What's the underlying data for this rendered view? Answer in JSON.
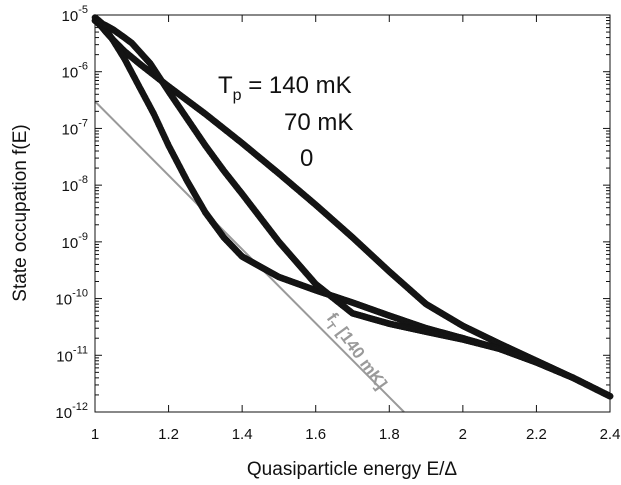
{
  "chart_data": {
    "type": "scatter",
    "xlabel": "Quasiparticle energy E/Δ",
    "ylabel": "State occupation  f(E)",
    "x_ticks": [
      "1",
      "1.2",
      "1.4",
      "1.6",
      "1.8",
      "2",
      "2.2",
      "2.4"
    ],
    "y_ticks": [
      {
        "base": "10",
        "exp": "-12"
      },
      {
        "base": "10",
        "exp": "-11"
      },
      {
        "base": "10",
        "exp": "-10"
      },
      {
        "base": "10",
        "exp": "-9"
      },
      {
        "base": "10",
        "exp": "-8"
      },
      {
        "base": "10",
        "exp": "-7"
      },
      {
        "base": "10",
        "exp": "-6"
      },
      {
        "base": "10",
        "exp": "-5"
      }
    ],
    "xlim": [
      1.0,
      2.4
    ],
    "ylim": [
      1e-12,
      1e-05
    ],
    "yscale": "log",
    "grid": false,
    "annotations": {
      "tp_prefix": "T",
      "tp_sub": "p",
      "tp_value": " = 140 mK",
      "line2": "70 mK",
      "line3": "0"
    },
    "reference_line": {
      "label_main": "f",
      "label_sub": "T",
      "label_rest": " [140 mK]",
      "color": "#9a9a9a",
      "x": [
        1.0,
        1.84
      ],
      "y": [
        3e-07,
        1e-12
      ]
    },
    "marker_color": "#141414",
    "series": [
      {
        "x": [
          1.0,
          1.01,
          1.02,
          1.03,
          1.05,
          1.08,
          1.12,
          1.2,
          1.3,
          1.4,
          1.5,
          1.6,
          1.7,
          1.8,
          1.9,
          2.0,
          2.1,
          2.2,
          2.3,
          2.4
        ],
        "y": [
          8e-06,
          7e-06,
          6e-06,
          5e-06,
          3.6e-06,
          2.3e-06,
          1.4e-06,
          5.5e-07,
          1.8e-07,
          5.5e-08,
          1.6e-08,
          4.5e-09,
          1.2e-09,
          3e-10,
          8e-11,
          3.3e-11,
          1.6e-11,
          8e-12,
          4e-12,
          1.9e-12
        ]
      },
      {
        "x": [
          1.0,
          1.01,
          1.02,
          1.03,
          1.05,
          1.08,
          1.12,
          1.16,
          1.2,
          1.25,
          1.3,
          1.35,
          1.4,
          1.5,
          1.6,
          1.7,
          1.8,
          1.9,
          2.0,
          2.1,
          2.2,
          2.3,
          2.4
        ],
        "y": [
          8e-06,
          7.5e-06,
          6.5e-06,
          5.5e-06,
          3.5e-06,
          1.7e-06,
          5.5e-07,
          1.8e-07,
          5e-08,
          1.2e-08,
          3.3e-09,
          1.2e-09,
          5.5e-10,
          2.4e-10,
          1.4e-10,
          8.5e-11,
          5e-11,
          3e-11,
          2e-11,
          1.3e-11,
          7.5e-12,
          4e-12,
          1.9e-12
        ]
      },
      {
        "x": [
          1.0,
          1.01,
          1.02,
          1.03,
          1.05,
          1.08,
          1.1,
          1.15,
          1.2,
          1.25,
          1.3,
          1.35,
          1.4,
          1.5,
          1.6,
          1.7,
          1.8,
          1.9,
          2.0,
          2.1,
          2.2,
          2.3,
          2.4
        ],
        "y": [
          9e-06,
          8e-06,
          7e-06,
          6.5e-06,
          5.5e-06,
          4e-06,
          3.2e-06,
          1.4e-06,
          4.5e-07,
          1.5e-07,
          5e-08,
          1.8e-08,
          7e-09,
          1e-09,
          1.8e-10,
          5.5e-11,
          3.6e-11,
          2.6e-11,
          1.9e-11,
          1.3e-11,
          7.5e-12,
          4e-12,
          1.9e-12
        ]
      }
    ]
  }
}
